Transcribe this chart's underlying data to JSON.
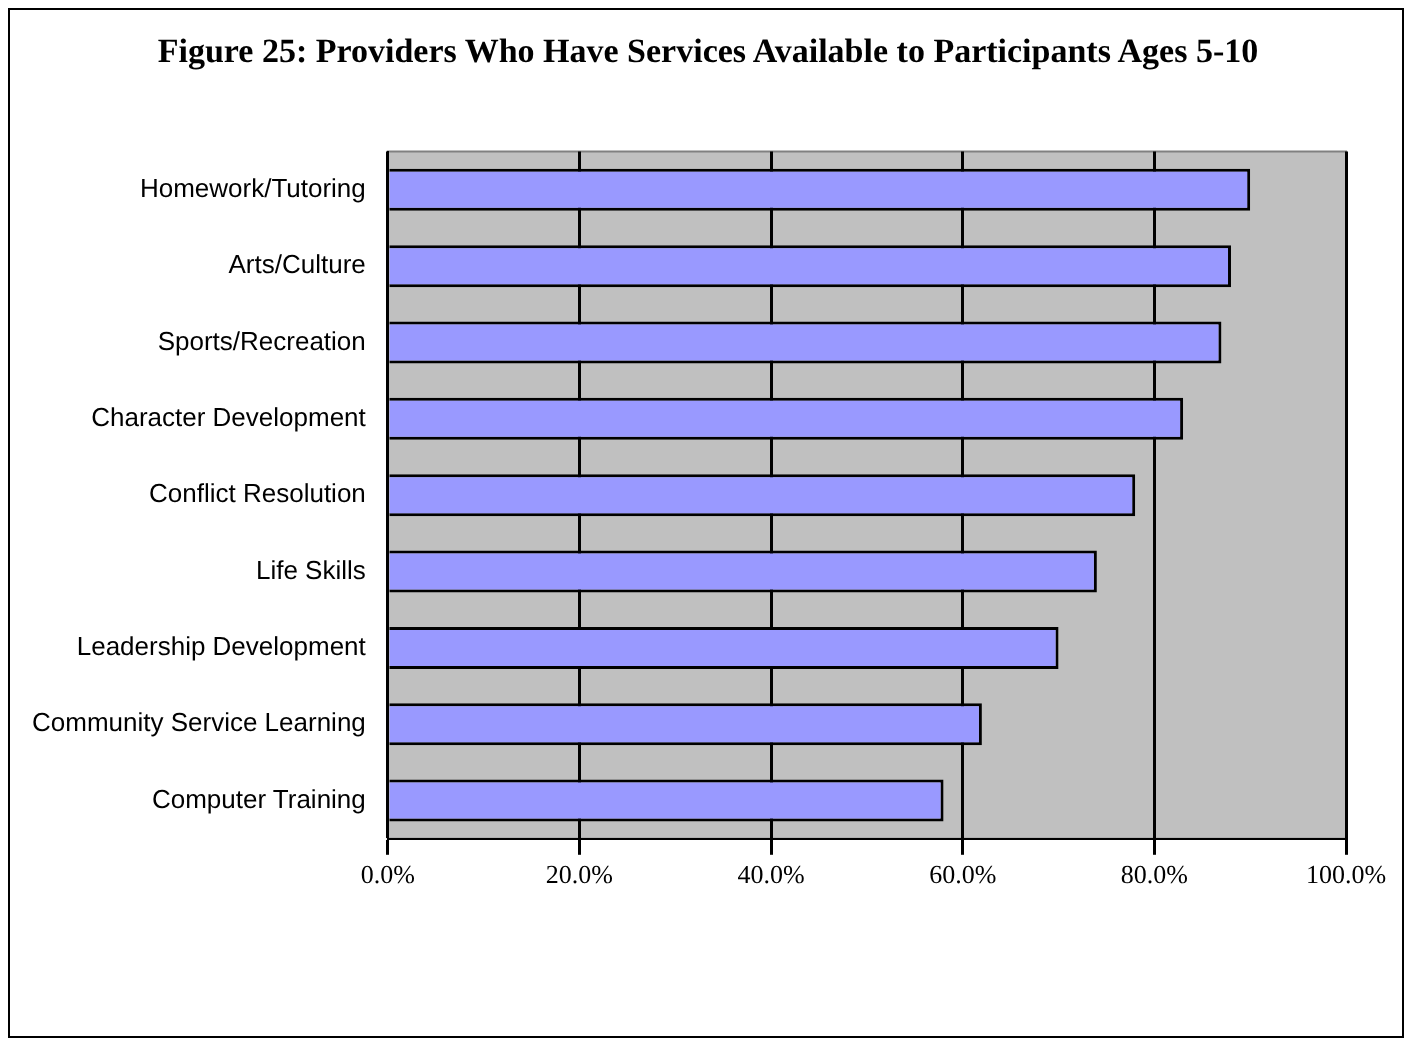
{
  "chart_data": {
    "type": "bar",
    "orientation": "horizontal",
    "title": "Figure 25: Providers Who Have Services Available to Participants Ages 5-10",
    "categories": [
      "Homework/Tutoring",
      "Arts/Culture",
      "Sports/Recreation",
      "Character Development",
      "Conflict Resolution",
      "Life Skills",
      "Leadership Development",
      "Community Service Learning",
      "Computer Training"
    ],
    "values": [
      90,
      88,
      87,
      83,
      78,
      74,
      70,
      62,
      58
    ],
    "color": "#9999ff",
    "xlim": [
      0,
      100
    ],
    "xticks": [
      {
        "value": 0,
        "label": "0.0%"
      },
      {
        "value": 20,
        "label": "20.0%"
      },
      {
        "value": 40,
        "label": "40.0%"
      },
      {
        "value": 60,
        "label": "60.0%"
      },
      {
        "value": 80,
        "label": "80.0%"
      },
      {
        "value": 100,
        "label": "100.0%"
      }
    ],
    "grid": "x",
    "legend": false
  }
}
